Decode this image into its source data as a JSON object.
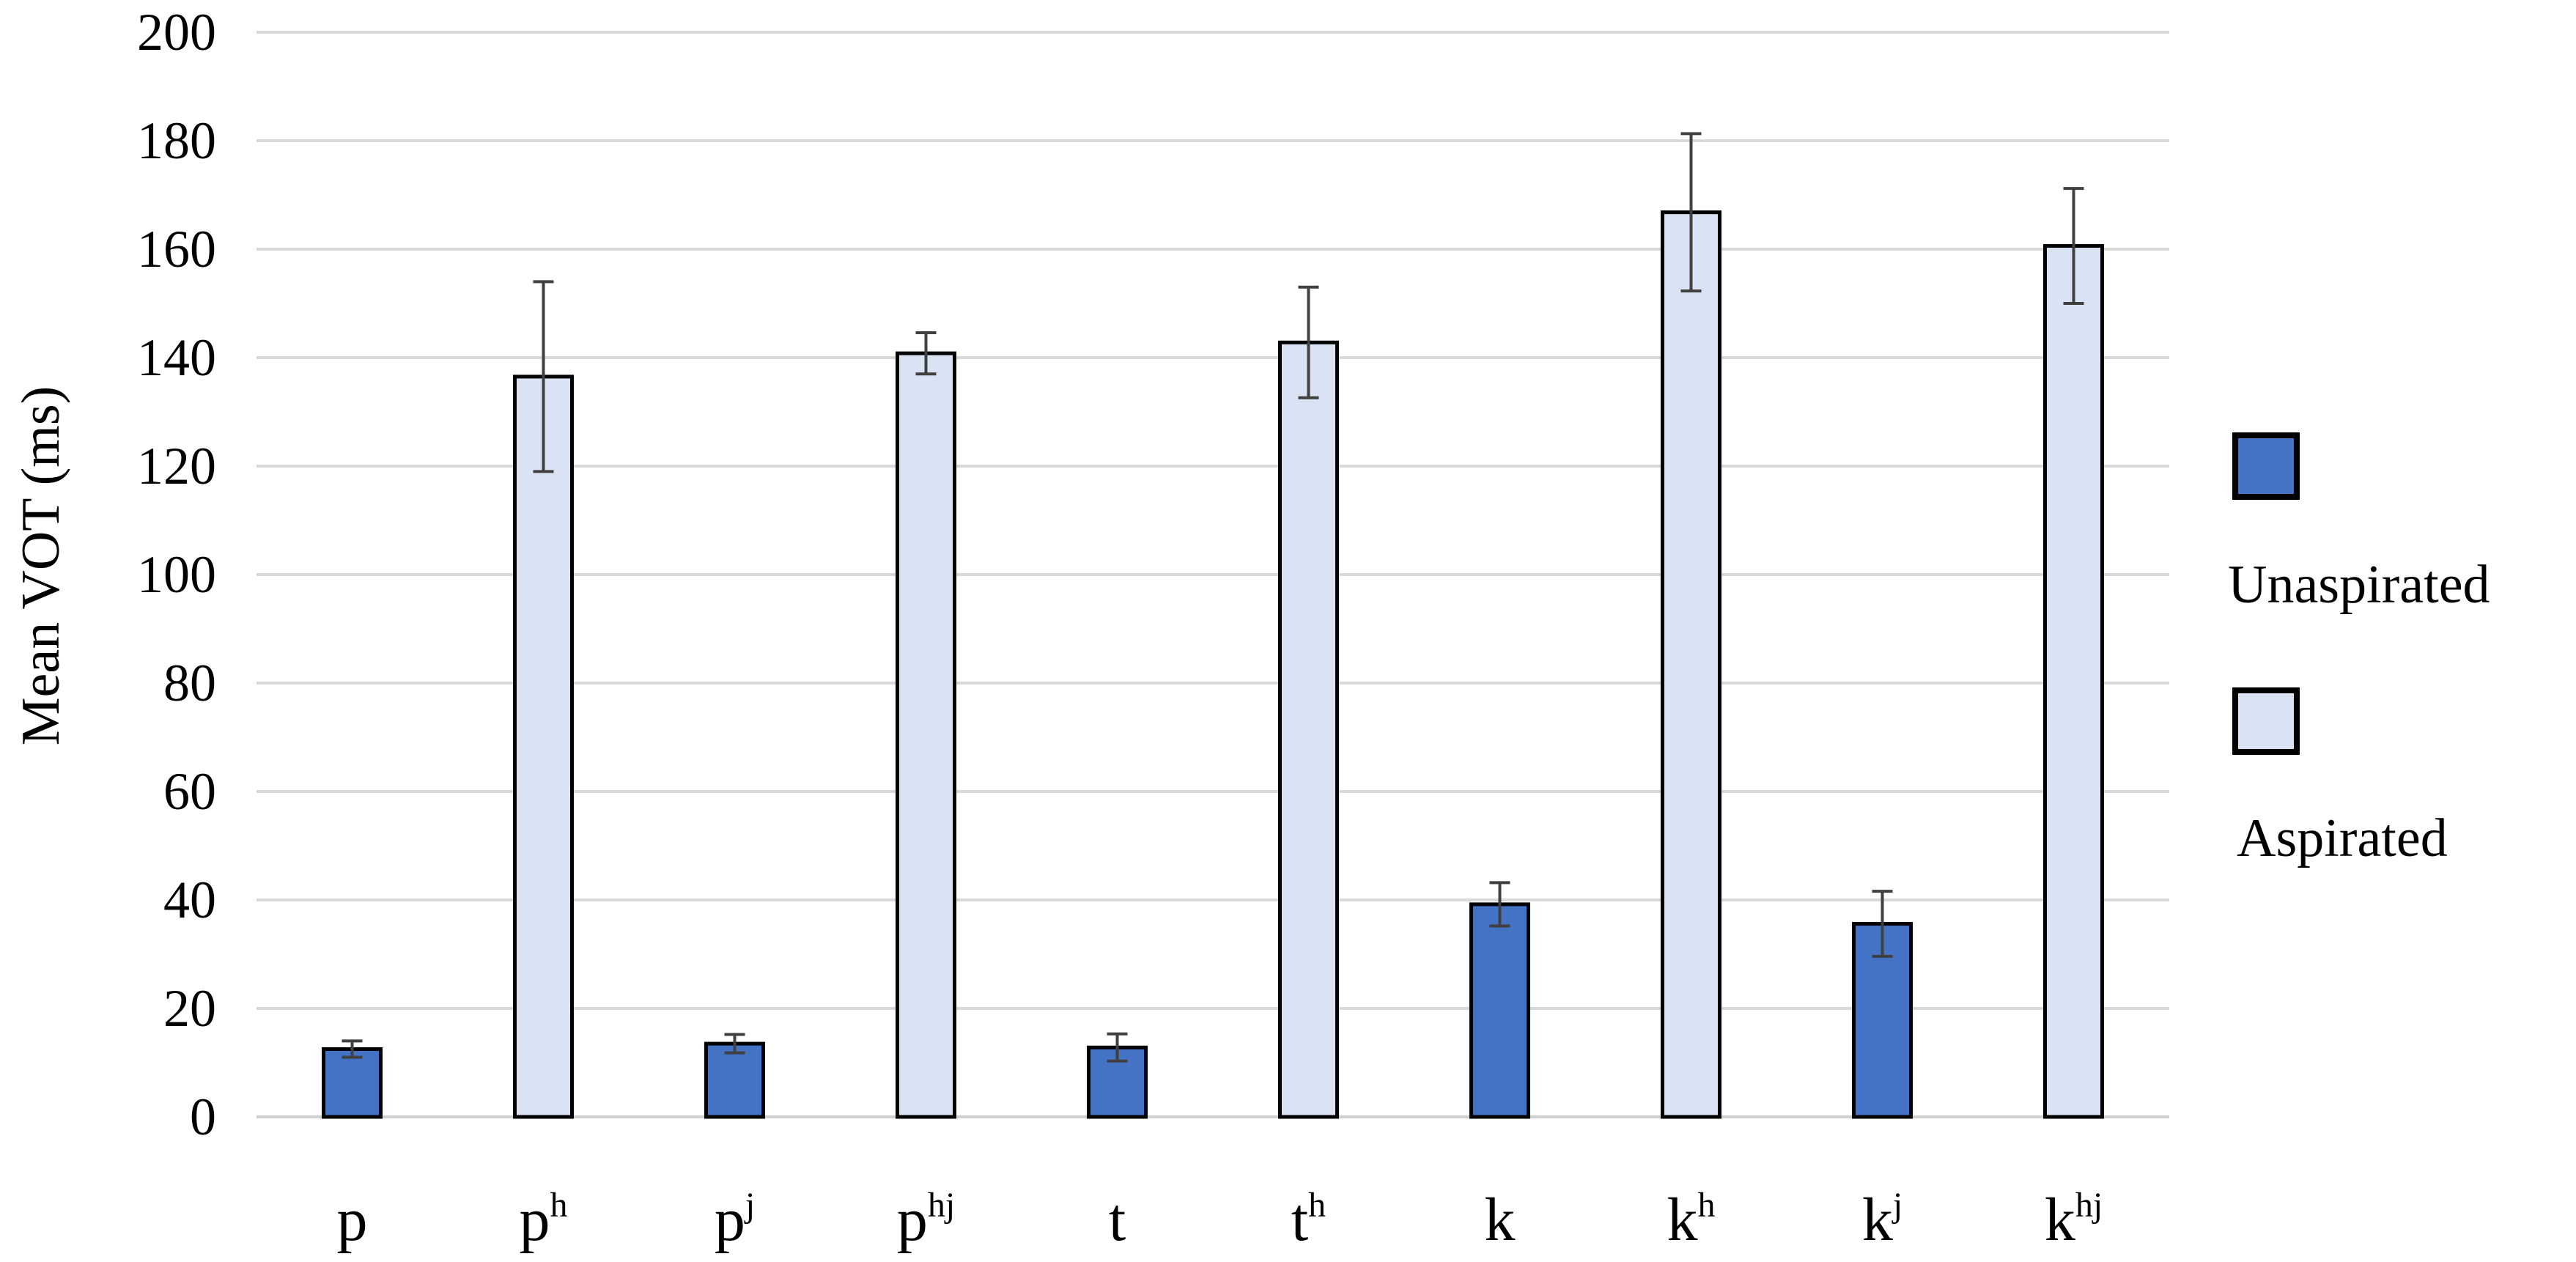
{
  "chart_data": {
    "type": "bar",
    "title": "",
    "xlabel": "",
    "ylabel": "Mean VOT (ms)",
    "ylim": [
      0,
      200
    ],
    "yticks": [
      0,
      20,
      40,
      60,
      80,
      100,
      120,
      140,
      160,
      180,
      200
    ],
    "grid": true,
    "legend_position": "right",
    "categories": [
      {
        "base": "p",
        "sup": ""
      },
      {
        "base": "p",
        "sup": "h"
      },
      {
        "base": "p",
        "sup": "j"
      },
      {
        "base": "p",
        "sup": "hj"
      },
      {
        "base": "t",
        "sup": ""
      },
      {
        "base": "t",
        "sup": "h"
      },
      {
        "base": "k",
        "sup": ""
      },
      {
        "base": "k",
        "sup": "h"
      },
      {
        "base": "k",
        "sup": "j"
      },
      {
        "base": "k",
        "sup": "hj"
      }
    ],
    "series": [
      {
        "name": "Unaspirated",
        "color": "#4472c4",
        "values": [
          12.5,
          null,
          13.5,
          null,
          12.8,
          null,
          39.2,
          null,
          35.6,
          null
        ],
        "error": [
          1.5,
          null,
          1.7,
          null,
          2.5,
          null,
          4.0,
          null,
          6.0,
          null
        ]
      },
      {
        "name": "Aspirated",
        "color": "#dae3f3",
        "values": [
          null,
          136.5,
          null,
          140.8,
          null,
          142.8,
          null,
          166.8,
          null,
          160.6
        ],
        "error": [
          null,
          17.5,
          null,
          3.8,
          null,
          10.2,
          null,
          14.5,
          null,
          10.6
        ]
      }
    ]
  }
}
